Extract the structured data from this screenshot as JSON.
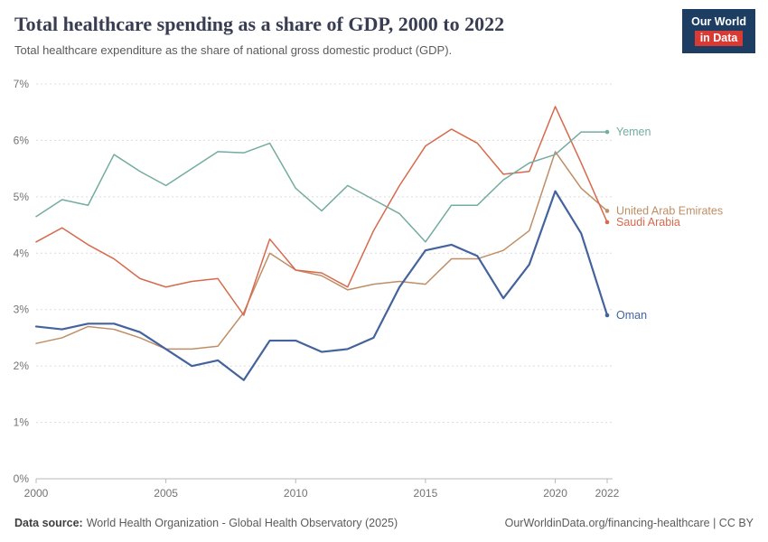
{
  "header": {
    "title": "Total healthcare spending as a share of GDP, 2000 to 2022",
    "subtitle": "Total healthcare expenditure as the share of national gross domestic product (GDP).",
    "logo": {
      "line1": "Our World",
      "line2": "in Data"
    }
  },
  "chart_data": {
    "type": "line",
    "x": [
      2000,
      2001,
      2002,
      2003,
      2004,
      2005,
      2006,
      2007,
      2008,
      2009,
      2010,
      2011,
      2012,
      2013,
      2014,
      2015,
      2016,
      2017,
      2018,
      2019,
      2020,
      2021,
      2022
    ],
    "xticks": [
      2000,
      2005,
      2010,
      2015,
      2020,
      2022
    ],
    "ylim": [
      0,
      7
    ],
    "ytick_suffix": "%",
    "grid": "horizontal-dashed",
    "legend_position": "end-of-line-labels",
    "series": [
      {
        "name": "United Arab Emirates",
        "color": "#bf8e66",
        "width": 1.5,
        "values": [
          2.4,
          2.5,
          2.7,
          2.65,
          2.5,
          2.3,
          2.3,
          2.35,
          2.95,
          4.0,
          3.7,
          3.6,
          3.35,
          3.45,
          3.5,
          3.45,
          3.9,
          3.9,
          4.05,
          4.4,
          5.8,
          5.15,
          4.75
        ]
      },
      {
        "name": "Saudi Arabia",
        "color": "#d7694d",
        "width": 1.5,
        "values": [
          4.2,
          4.45,
          4.15,
          3.9,
          3.55,
          3.4,
          3.5,
          3.55,
          2.9,
          4.25,
          3.7,
          3.65,
          3.4,
          4.4,
          5.2,
          5.9,
          6.2,
          5.95,
          5.4,
          5.45,
          6.6,
          5.6,
          4.55
        ]
      },
      {
        "name": "Yemen",
        "color": "#74aca0",
        "width": 1.5,
        "values": [
          4.65,
          4.95,
          4.85,
          5.75,
          5.45,
          5.2,
          5.5,
          5.8,
          5.78,
          5.95,
          5.15,
          4.75,
          5.2,
          4.95,
          4.7,
          4.2,
          4.85,
          4.85,
          5.3,
          5.6,
          5.75,
          6.15,
          6.15
        ]
      },
      {
        "name": "Oman",
        "color": "#44639d",
        "width": 2.2,
        "values": [
          2.7,
          2.65,
          2.75,
          2.75,
          2.6,
          2.3,
          2.0,
          2.1,
          1.75,
          2.45,
          2.45,
          2.25,
          2.3,
          2.5,
          3.4,
          4.05,
          4.15,
          3.95,
          3.2,
          3.8,
          5.1,
          4.35,
          2.9
        ]
      }
    ]
  },
  "footer": {
    "datasource_label": "Data source:",
    "datasource": "World Health Organization - Global Health Observatory (2025)",
    "credit": "OurWorldinData.org/financing-healthcare | CC BY"
  }
}
